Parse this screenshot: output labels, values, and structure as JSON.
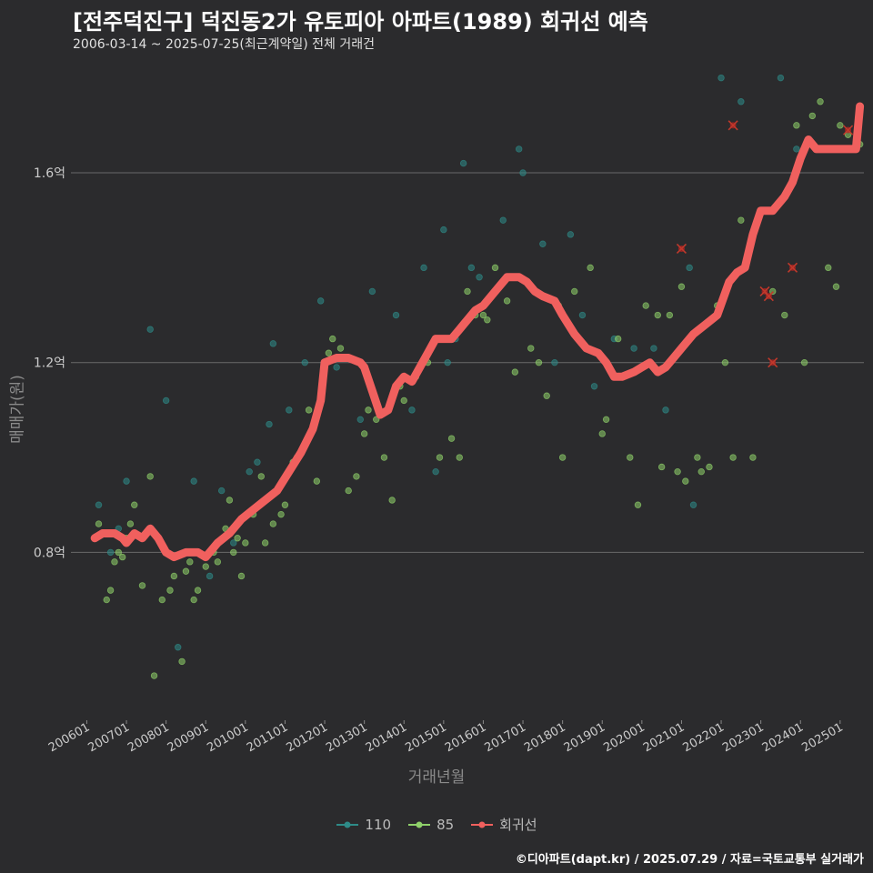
{
  "title": "[전주덕진구] 덕진동2가 유토피아 아파트(1989) 회귀선 예측",
  "subtitle": "2006-03-14 ~ 2025-07-25(최근계약일) 전체 거래건",
  "credit": "©디아파트(dapt.kr) / 2025.07.29 / 자료=국토교통부 실거래가",
  "colors": {
    "s110": "#2e8b88",
    "s85": "#8fd16a",
    "regression": "#f0605e",
    "grid": "#6a6a6a",
    "background": "#2b2b2d"
  },
  "chart_data": {
    "type": "scatter",
    "xlabel": "거래년월",
    "ylabel": "매매가(원)",
    "x_ticks": [
      "200601",
      "200701",
      "200801",
      "200901",
      "201001",
      "201101",
      "201201",
      "201301",
      "201401",
      "201501",
      "201601",
      "201701",
      "201801",
      "201901",
      "202001",
      "202101",
      "202201",
      "202301",
      "202401",
      "202501"
    ],
    "y_ticks": [
      {
        "value": 0.8,
        "label": "0.8억"
      },
      {
        "value": 1.2,
        "label": "1.2억"
      },
      {
        "value": 1.6,
        "label": "1.6억"
      }
    ],
    "xlim": [
      2005.6,
      2025.6
    ],
    "ylim": [
      0.45,
      1.83
    ],
    "grid": "horizontal",
    "legend": "bottom",
    "legend_labels": {
      "s110": "110",
      "s85": "85",
      "regression": "회귀선"
    },
    "series": [
      {
        "name": "110",
        "points": [
          [
            2006.3,
            0.9
          ],
          [
            2006.6,
            0.8
          ],
          [
            2006.8,
            0.85
          ],
          [
            2007.0,
            0.95
          ],
          [
            2007.6,
            1.27
          ],
          [
            2008.0,
            1.12
          ],
          [
            2008.3,
            0.6
          ],
          [
            2008.7,
            0.95
          ],
          [
            2009.1,
            0.75
          ],
          [
            2009.4,
            0.93
          ],
          [
            2009.7,
            0.82
          ],
          [
            2010.1,
            0.97
          ],
          [
            2010.3,
            0.99
          ],
          [
            2010.6,
            1.07
          ],
          [
            2010.7,
            1.24
          ],
          [
            2011.1,
            1.1
          ],
          [
            2011.5,
            1.2
          ],
          [
            2011.9,
            1.33
          ],
          [
            2012.3,
            1.19
          ],
          [
            2012.9,
            1.08
          ],
          [
            2013.2,
            1.35
          ],
          [
            2013.8,
            1.3
          ],
          [
            2014.2,
            1.1
          ],
          [
            2014.5,
            1.4
          ],
          [
            2014.8,
            0.97
          ],
          [
            2015.0,
            1.48
          ],
          [
            2015.1,
            1.2
          ],
          [
            2015.3,
            1.25
          ],
          [
            2015.5,
            1.62
          ],
          [
            2015.7,
            1.4
          ],
          [
            2015.9,
            1.38
          ],
          [
            2016.5,
            1.5
          ],
          [
            2016.9,
            1.65
          ],
          [
            2017.0,
            1.6
          ],
          [
            2017.5,
            1.45
          ],
          [
            2017.8,
            1.2
          ],
          [
            2018.2,
            1.47
          ],
          [
            2018.5,
            1.3
          ],
          [
            2018.8,
            1.15
          ],
          [
            2019.3,
            1.25
          ],
          [
            2019.8,
            1.23
          ],
          [
            2020.3,
            1.23
          ],
          [
            2020.6,
            1.1
          ],
          [
            2021.2,
            1.4
          ],
          [
            2021.3,
            0.9
          ],
          [
            2022.0,
            1.8
          ],
          [
            2022.5,
            1.75
          ],
          [
            2023.5,
            1.8
          ],
          [
            2023.9,
            1.65
          ]
        ]
      },
      {
        "name": "85",
        "points": [
          [
            2006.3,
            0.86
          ],
          [
            2006.5,
            0.7
          ],
          [
            2006.6,
            0.72
          ],
          [
            2006.7,
            0.78
          ],
          [
            2006.8,
            0.8
          ],
          [
            2006.9,
            0.79
          ],
          [
            2007.0,
            0.83
          ],
          [
            2007.1,
            0.86
          ],
          [
            2007.2,
            0.9
          ],
          [
            2007.4,
            0.73
          ],
          [
            2007.6,
            0.96
          ],
          [
            2007.7,
            0.54
          ],
          [
            2007.9,
            0.7
          ],
          [
            2008.1,
            0.72
          ],
          [
            2008.2,
            0.75
          ],
          [
            2008.4,
            0.57
          ],
          [
            2008.5,
            0.76
          ],
          [
            2008.6,
            0.78
          ],
          [
            2008.7,
            0.7
          ],
          [
            2008.8,
            0.72
          ],
          [
            2009.0,
            0.77
          ],
          [
            2009.2,
            0.8
          ],
          [
            2009.3,
            0.78
          ],
          [
            2009.5,
            0.85
          ],
          [
            2009.6,
            0.91
          ],
          [
            2009.7,
            0.8
          ],
          [
            2009.8,
            0.83
          ],
          [
            2009.9,
            0.75
          ],
          [
            2010.0,
            0.82
          ],
          [
            2010.2,
            0.88
          ],
          [
            2010.4,
            0.96
          ],
          [
            2010.5,
            0.82
          ],
          [
            2010.7,
            0.86
          ],
          [
            2010.9,
            0.88
          ],
          [
            2011.0,
            0.9
          ],
          [
            2011.2,
            0.99
          ],
          [
            2011.3,
            1.0
          ],
          [
            2011.6,
            1.1
          ],
          [
            2011.8,
            0.95
          ],
          [
            2012.0,
            1.2
          ],
          [
            2012.1,
            1.22
          ],
          [
            2012.2,
            1.25
          ],
          [
            2012.4,
            1.23
          ],
          [
            2012.6,
            0.93
          ],
          [
            2012.8,
            0.96
          ],
          [
            2013.0,
            1.05
          ],
          [
            2013.1,
            1.1
          ],
          [
            2013.3,
            1.08
          ],
          [
            2013.5,
            1.0
          ],
          [
            2013.7,
            0.91
          ],
          [
            2013.9,
            1.15
          ],
          [
            2014.0,
            1.12
          ],
          [
            2014.3,
            1.17
          ],
          [
            2014.6,
            1.2
          ],
          [
            2014.9,
            1.0
          ],
          [
            2015.2,
            1.04
          ],
          [
            2015.4,
            1.0
          ],
          [
            2015.6,
            1.35
          ],
          [
            2015.8,
            1.3
          ],
          [
            2016.0,
            1.3
          ],
          [
            2016.1,
            1.29
          ],
          [
            2016.3,
            1.4
          ],
          [
            2016.6,
            1.33
          ],
          [
            2016.8,
            1.18
          ],
          [
            2017.2,
            1.23
          ],
          [
            2017.4,
            1.2
          ],
          [
            2017.6,
            1.13
          ],
          [
            2017.9,
            1.32
          ],
          [
            2018.0,
            1.0
          ],
          [
            2018.3,
            1.35
          ],
          [
            2018.7,
            1.4
          ],
          [
            2019.0,
            1.05
          ],
          [
            2019.1,
            1.08
          ],
          [
            2019.4,
            1.25
          ],
          [
            2019.7,
            1.0
          ],
          [
            2019.9,
            0.9
          ],
          [
            2020.1,
            1.32
          ],
          [
            2020.4,
            1.3
          ],
          [
            2020.5,
            0.98
          ],
          [
            2020.7,
            1.3
          ],
          [
            2020.9,
            0.97
          ],
          [
            2021.0,
            1.36
          ],
          [
            2021.1,
            0.95
          ],
          [
            2021.4,
            1.0
          ],
          [
            2021.5,
            0.97
          ],
          [
            2021.7,
            0.98
          ],
          [
            2021.9,
            1.32
          ],
          [
            2022.1,
            1.2
          ],
          [
            2022.3,
            1.0
          ],
          [
            2022.5,
            1.5
          ],
          [
            2022.8,
            1.0
          ],
          [
            2023.0,
            1.52
          ],
          [
            2023.3,
            1.35
          ],
          [
            2023.6,
            1.3
          ],
          [
            2023.9,
            1.7
          ],
          [
            2024.1,
            1.2
          ],
          [
            2024.3,
            1.72
          ],
          [
            2024.5,
            1.75
          ],
          [
            2024.7,
            1.4
          ],
          [
            2024.9,
            1.36
          ],
          [
            2025.0,
            1.7
          ],
          [
            2025.2,
            1.68
          ],
          [
            2025.5,
            1.66
          ]
        ]
      },
      {
        "name": "회귀선",
        "points": [
          [
            2006.2,
            0.83
          ],
          [
            2006.4,
            0.84
          ],
          [
            2006.7,
            0.84
          ],
          [
            2006.9,
            0.83
          ],
          [
            2007.0,
            0.82
          ],
          [
            2007.2,
            0.84
          ],
          [
            2007.4,
            0.83
          ],
          [
            2007.6,
            0.85
          ],
          [
            2007.8,
            0.83
          ],
          [
            2008.0,
            0.8
          ],
          [
            2008.2,
            0.79
          ],
          [
            2008.5,
            0.8
          ],
          [
            2008.8,
            0.8
          ],
          [
            2009.0,
            0.79
          ],
          [
            2009.3,
            0.82
          ],
          [
            2009.6,
            0.84
          ],
          [
            2009.9,
            0.87
          ],
          [
            2010.2,
            0.89
          ],
          [
            2010.5,
            0.91
          ],
          [
            2010.8,
            0.93
          ],
          [
            2011.1,
            0.97
          ],
          [
            2011.4,
            1.01
          ],
          [
            2011.7,
            1.06
          ],
          [
            2011.9,
            1.12
          ],
          [
            2012.0,
            1.2
          ],
          [
            2012.3,
            1.21
          ],
          [
            2012.6,
            1.21
          ],
          [
            2012.9,
            1.2
          ],
          [
            2013.0,
            1.19
          ],
          [
            2013.2,
            1.14
          ],
          [
            2013.4,
            1.09
          ],
          [
            2013.6,
            1.1
          ],
          [
            2013.8,
            1.15
          ],
          [
            2014.0,
            1.17
          ],
          [
            2014.2,
            1.16
          ],
          [
            2014.4,
            1.19
          ],
          [
            2014.6,
            1.22
          ],
          [
            2014.8,
            1.25
          ],
          [
            2015.0,
            1.25
          ],
          [
            2015.2,
            1.25
          ],
          [
            2015.4,
            1.27
          ],
          [
            2015.6,
            1.29
          ],
          [
            2015.8,
            1.31
          ],
          [
            2016.0,
            1.32
          ],
          [
            2016.3,
            1.35
          ],
          [
            2016.6,
            1.38
          ],
          [
            2016.9,
            1.38
          ],
          [
            2017.1,
            1.37
          ],
          [
            2017.3,
            1.35
          ],
          [
            2017.5,
            1.34
          ],
          [
            2017.8,
            1.33
          ],
          [
            2018.0,
            1.3
          ],
          [
            2018.3,
            1.26
          ],
          [
            2018.6,
            1.23
          ],
          [
            2018.9,
            1.22
          ],
          [
            2019.1,
            1.2
          ],
          [
            2019.3,
            1.17
          ],
          [
            2019.5,
            1.17
          ],
          [
            2019.8,
            1.18
          ],
          [
            2020.0,
            1.19
          ],
          [
            2020.2,
            1.2
          ],
          [
            2020.4,
            1.18
          ],
          [
            2020.6,
            1.19
          ],
          [
            2020.8,
            1.21
          ],
          [
            2021.0,
            1.23
          ],
          [
            2021.3,
            1.26
          ],
          [
            2021.6,
            1.28
          ],
          [
            2021.9,
            1.3
          ],
          [
            2022.2,
            1.37
          ],
          [
            2022.4,
            1.39
          ],
          [
            2022.6,
            1.4
          ],
          [
            2022.8,
            1.47
          ],
          [
            2023.0,
            1.52
          ],
          [
            2023.3,
            1.52
          ],
          [
            2023.6,
            1.55
          ],
          [
            2023.8,
            1.58
          ],
          [
            2024.0,
            1.63
          ],
          [
            2024.2,
            1.67
          ],
          [
            2024.4,
            1.65
          ],
          [
            2024.6,
            1.65
          ],
          [
            2024.9,
            1.65
          ],
          [
            2025.2,
            1.65
          ],
          [
            2025.4,
            1.65
          ],
          [
            2025.5,
            1.74
          ]
        ]
      }
    ],
    "outliers": [
      [
        2021.0,
        1.44
      ],
      [
        2022.3,
        1.7
      ],
      [
        2023.1,
        1.35
      ],
      [
        2023.2,
        1.34
      ],
      [
        2023.3,
        1.2
      ],
      [
        2023.8,
        1.4
      ],
      [
        2025.2,
        1.69
      ]
    ]
  }
}
